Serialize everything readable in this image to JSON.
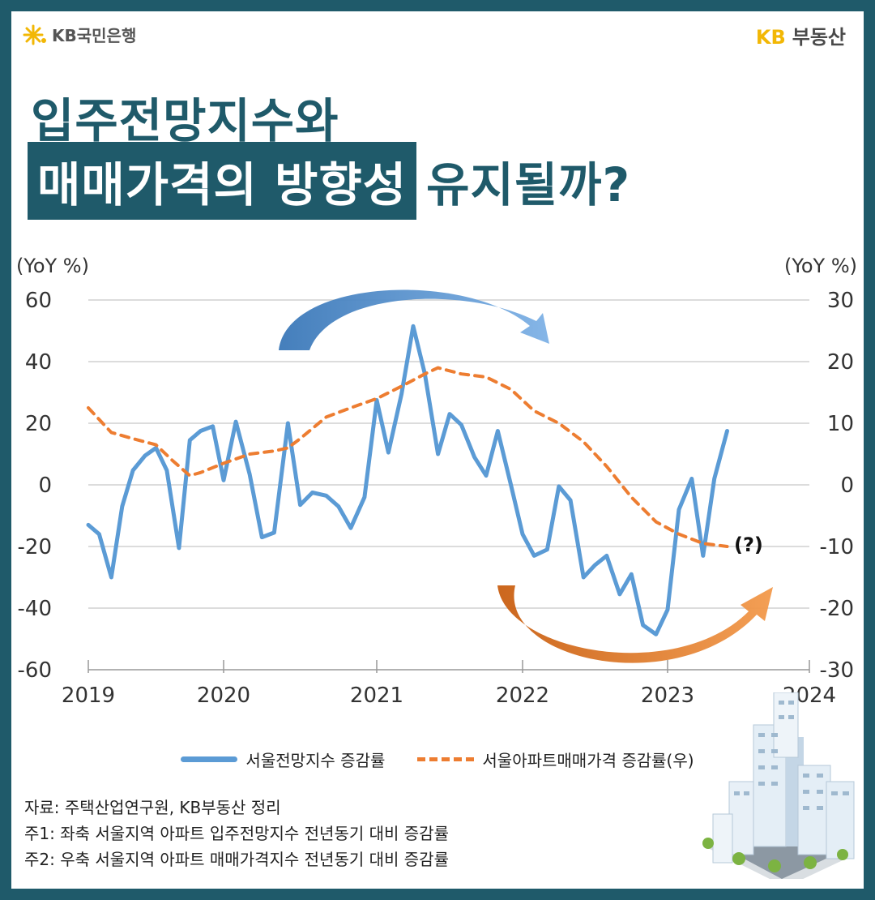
{
  "header": {
    "left_brand": "KB국민은행",
    "right_brand_kb": "KB",
    "right_brand_text": "부동산"
  },
  "title": {
    "line1": "입주전망지수와",
    "line2_highlight": "매매가격의 방향성",
    "line2_rest": "유지될까?"
  },
  "chart_data": {
    "type": "line",
    "x_ticks": [
      "2019",
      "2020",
      "2021",
      "2022",
      "2023",
      "2024"
    ],
    "y_left": {
      "label": "(YoY %)",
      "min": -60,
      "max": 60,
      "ticks": [
        "60",
        "40",
        "20",
        "0",
        "-20",
        "-40",
        "-60"
      ]
    },
    "y_right": {
      "label": "(YoY %)",
      "min": -30,
      "max": 30,
      "ticks": [
        "30",
        "20",
        "10",
        "0",
        "-10",
        "-20",
        "-30"
      ]
    },
    "annotation": "(?)",
    "grid": true,
    "series": [
      {
        "name": "서울전망지수 증감률",
        "axis": "left",
        "style": "solid",
        "color": "#5b9bd5",
        "points": [
          [
            2019.0,
            -13
          ],
          [
            2019.08,
            -16
          ],
          [
            2019.17,
            -30
          ],
          [
            2019.25,
            -7
          ],
          [
            2019.33,
            4.7
          ],
          [
            2019.42,
            9.5
          ],
          [
            2019.5,
            12
          ],
          [
            2019.58,
            4.7
          ],
          [
            2019.67,
            -20.5
          ],
          [
            2019.75,
            14.5
          ],
          [
            2019.83,
            17.5
          ],
          [
            2019.92,
            19
          ],
          [
            2020.0,
            1.5
          ],
          [
            2020.08,
            20.5
          ],
          [
            2020.17,
            3.5
          ],
          [
            2020.25,
            -17
          ],
          [
            2020.33,
            -15.5
          ],
          [
            2020.42,
            20
          ],
          [
            2020.5,
            -6.5
          ],
          [
            2020.58,
            -2.5
          ],
          [
            2020.67,
            -3.5
          ],
          [
            2020.75,
            -7
          ],
          [
            2020.83,
            -14
          ],
          [
            2020.92,
            -4
          ],
          [
            2021.0,
            27.5
          ],
          [
            2021.08,
            10.5
          ],
          [
            2021.17,
            29.5
          ],
          [
            2021.25,
            51.5
          ],
          [
            2021.33,
            36
          ],
          [
            2021.42,
            10
          ],
          [
            2021.5,
            23
          ],
          [
            2021.58,
            19.5
          ],
          [
            2021.67,
            9
          ],
          [
            2021.75,
            3
          ],
          [
            2021.83,
            17.5
          ],
          [
            2021.92,
            0
          ],
          [
            2022.0,
            -16
          ],
          [
            2022.08,
            -23
          ],
          [
            2022.17,
            -21
          ],
          [
            2022.25,
            -0.5
          ],
          [
            2022.33,
            -5
          ],
          [
            2022.42,
            -30
          ],
          [
            2022.5,
            -26
          ],
          [
            2022.58,
            -23
          ],
          [
            2022.67,
            -35.5
          ],
          [
            2022.75,
            -29
          ],
          [
            2022.83,
            -45.5
          ],
          [
            2022.92,
            -48.5
          ],
          [
            2023.0,
            -40.5
          ],
          [
            2023.08,
            -8
          ],
          [
            2023.17,
            2
          ],
          [
            2023.25,
            -23
          ],
          [
            2023.33,
            2
          ],
          [
            2023.42,
            17.5
          ]
        ]
      },
      {
        "name": "서울아파트매매가격 증감률(우)",
        "axis": "right",
        "style": "dashed",
        "color": "#ed7d31",
        "points": [
          [
            2019.0,
            12.5
          ],
          [
            2019.17,
            8.5
          ],
          [
            2019.33,
            7.5
          ],
          [
            2019.5,
            6.5
          ],
          [
            2019.62,
            4
          ],
          [
            2019.75,
            1.5
          ],
          [
            2019.83,
            2
          ],
          [
            2020.0,
            3.5
          ],
          [
            2020.17,
            5
          ],
          [
            2020.33,
            5.5
          ],
          [
            2020.42,
            6
          ],
          [
            2020.5,
            7.5
          ],
          [
            2020.67,
            11
          ],
          [
            2020.83,
            12.5
          ],
          [
            2021.0,
            14
          ],
          [
            2021.17,
            16
          ],
          [
            2021.33,
            18
          ],
          [
            2021.42,
            19
          ],
          [
            2021.58,
            18
          ],
          [
            2021.75,
            17.5
          ],
          [
            2021.92,
            15.5
          ],
          [
            2022.08,
            12
          ],
          [
            2022.25,
            10
          ],
          [
            2022.42,
            7
          ],
          [
            2022.58,
            3
          ],
          [
            2022.75,
            -2
          ],
          [
            2022.92,
            -6
          ],
          [
            2023.08,
            -8
          ],
          [
            2023.25,
            -9.5
          ],
          [
            2023.42,
            -10
          ]
        ]
      }
    ]
  },
  "legend": {
    "series1": "서울전망지수 증감률",
    "series2": "서울아파트매매가격 증감률(우)"
  },
  "notes": {
    "source": "자료: 주택산업연구원, KB부동산 정리",
    "note1": "주1: 좌축 서울지역 아파트 입주전망지수 전년동기 대비 증감률",
    "note2": "주2: 우축 서울지역 아파트 매매가격지수 전년동기 대비 증감률"
  },
  "colors": {
    "frame": "#1f5a6a",
    "blue_series": "#5b9bd5",
    "orange_series": "#ed7d31",
    "brand_yellow": "#f2b705"
  }
}
